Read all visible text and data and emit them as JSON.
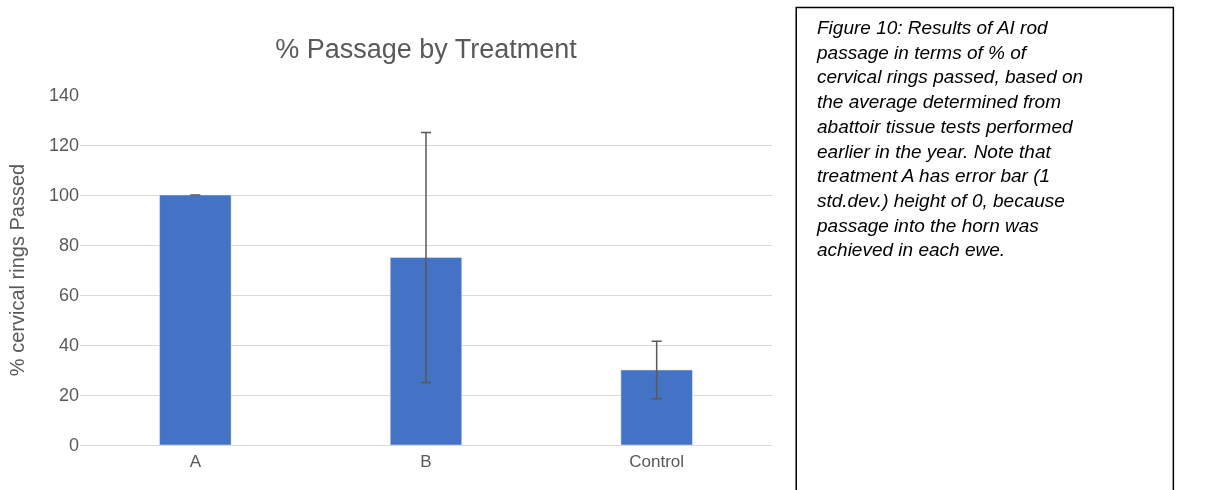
{
  "chart_data": {
    "type": "bar",
    "title": "% Passage by Treatment",
    "ylabel": "% cervical rings Passed",
    "categories": [
      "A",
      "B",
      "Control"
    ],
    "values": [
      100,
      75,
      30
    ],
    "color": "#4472c4",
    "errors": [
      0,
      50,
      11.5
    ],
    "ylim": [
      0,
      140
    ],
    "yticks": [
      0,
      20,
      40,
      60,
      80,
      100,
      120,
      140
    ],
    "grid": "y",
    "legend": false,
    "annotations": [
      "Figure 10: Results of AI rod passage in terms of % of cervical rings passed, based on the average determined from abattoir tissue tests performed earlier in the year. Note that treatment A has error bar (1 std.dev.) height of 0, because passage into the horn was achieved in each ewe."
    ]
  }
}
